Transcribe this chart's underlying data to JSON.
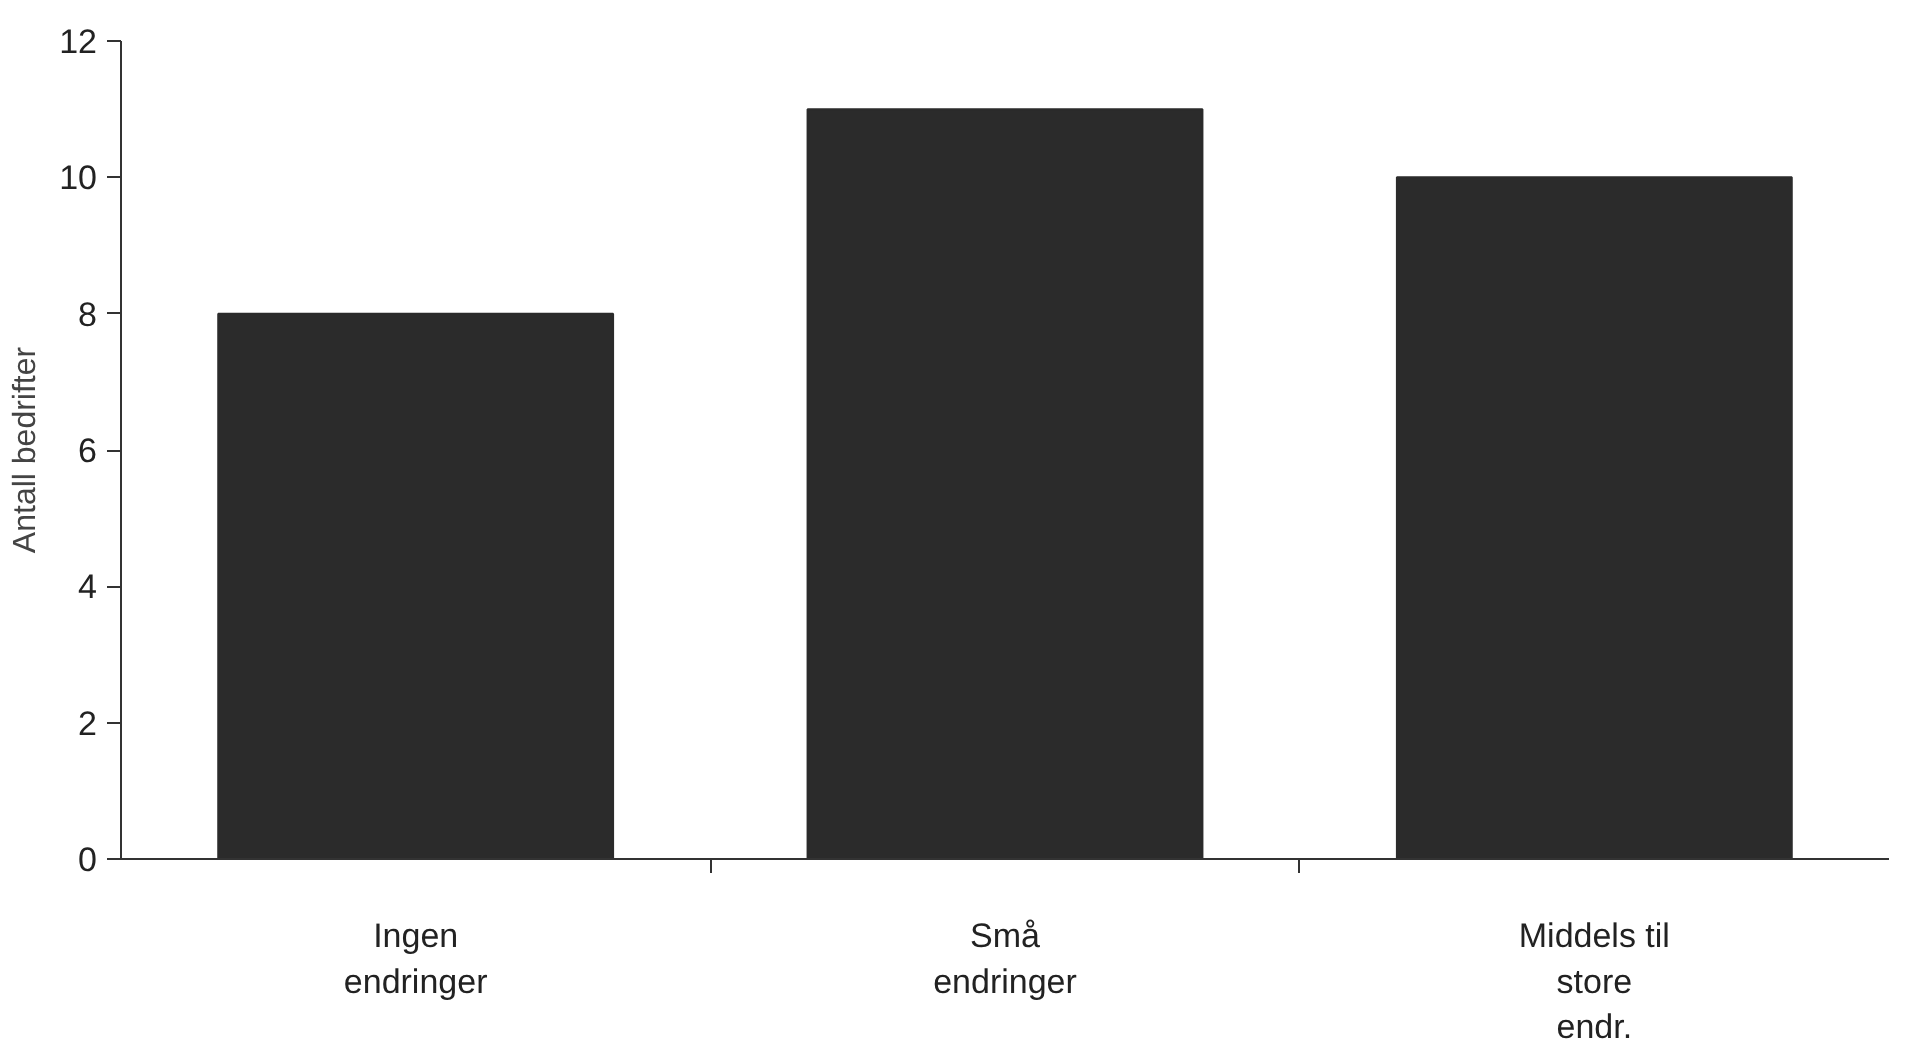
{
  "chart_data": {
    "type": "bar",
    "ylabel": "Antall bedrifter",
    "categories": [
      "Ingen\nendringer",
      "Små\nendringer",
      "Middels til\nstore\nendr."
    ],
    "values": [
      8,
      11,
      10
    ],
    "color": "#2b2b2b",
    "ylim": [
      0,
      12
    ],
    "yticks": [
      0,
      2,
      4,
      6,
      8,
      10,
      12
    ],
    "grid": false
  }
}
